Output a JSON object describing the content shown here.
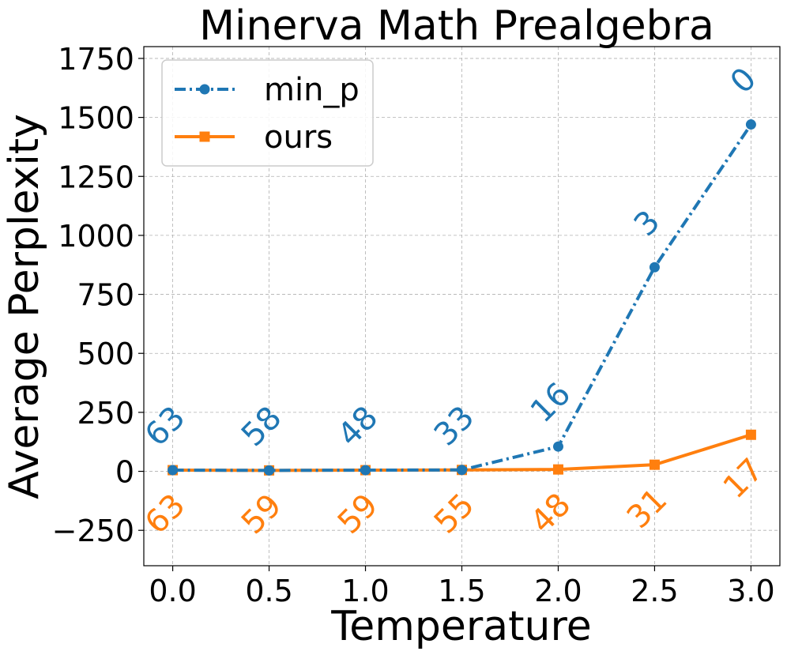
{
  "chart_data": {
    "type": "line",
    "title": "Minerva Math Prealgebra",
    "xlabel": "Temperature",
    "ylabel": "Average Perplexity",
    "x": [
      0.0,
      0.5,
      1.0,
      1.5,
      2.0,
      2.5,
      3.0
    ],
    "xticks": [
      "0.0",
      "0.5",
      "1.0",
      "1.5",
      "2.0",
      "2.5",
      "3.0"
    ],
    "xlim": [
      -0.15,
      3.15
    ],
    "yticks": [
      "−250",
      "0",
      "250",
      "500",
      "750",
      "1000",
      "1250",
      "1500",
      "1750"
    ],
    "ytick_values": [
      -250,
      0,
      250,
      500,
      750,
      1000,
      1250,
      1500,
      1750
    ],
    "ylim": [
      -400,
      1800
    ],
    "grid": true,
    "legend_position": "top-left",
    "series": [
      {
        "name": "min_p",
        "color": "#1f77b4",
        "linestyle": "dash-dot",
        "marker": "circle",
        "values": [
          5,
          4,
          5,
          6,
          105,
          865,
          1470
        ],
        "labels": [
          "63",
          "58",
          "48",
          "33",
          "16",
          "3",
          "0"
        ]
      },
      {
        "name": "ours",
        "color": "#ff7f0e",
        "linestyle": "solid",
        "marker": "square",
        "values": [
          5,
          4,
          5,
          6,
          8,
          28,
          155
        ],
        "labels": [
          "63",
          "59",
          "59",
          "55",
          "48",
          "31",
          "17"
        ]
      }
    ]
  }
}
